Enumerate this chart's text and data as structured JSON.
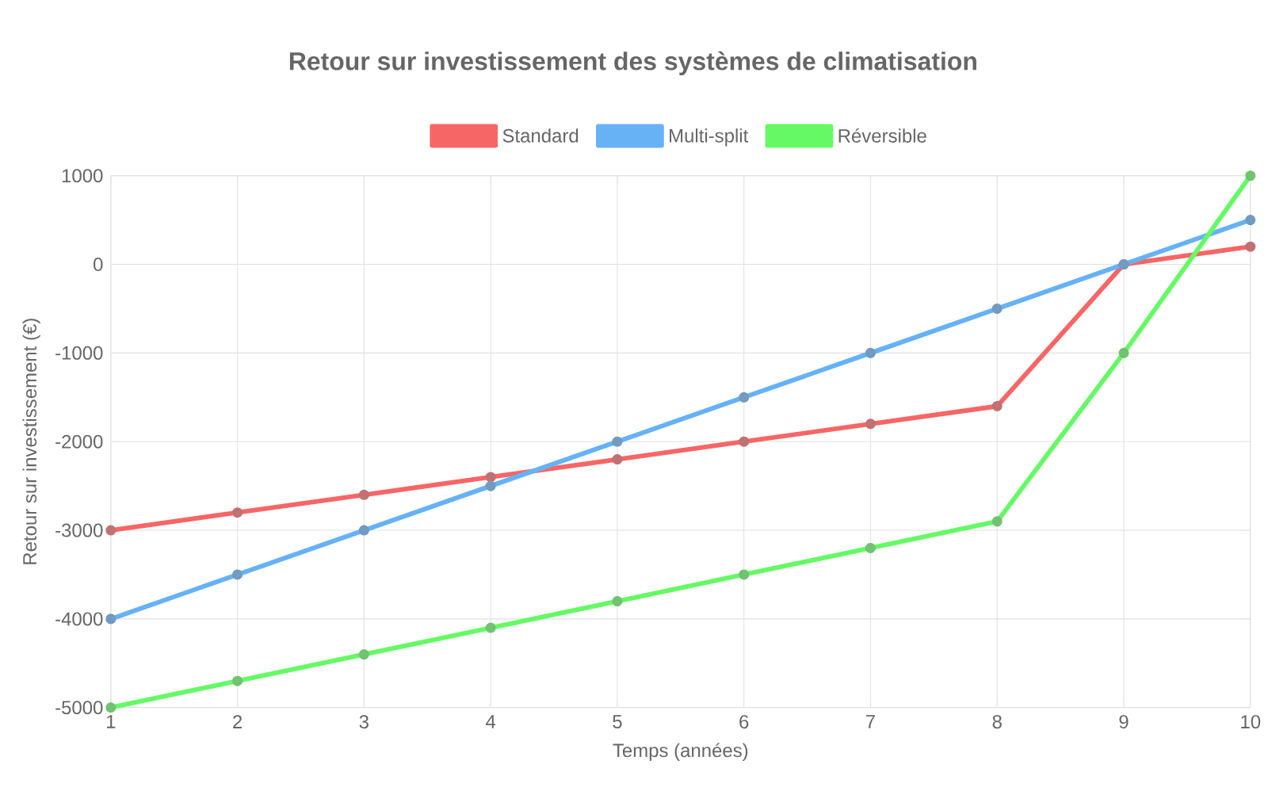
{
  "chart_data": {
    "type": "line",
    "title": "Retour sur investissement des systèmes de climatisation",
    "xlabel": "Temps (années)",
    "ylabel": "Retour sur investissement (€)",
    "categories": [
      "1",
      "2",
      "3",
      "4",
      "5",
      "6",
      "7",
      "8",
      "9",
      "10"
    ],
    "series": [
      {
        "name": "Standard",
        "color": "#f66666",
        "values": [
          -3000,
          -2800,
          -2600,
          -2400,
          -2200,
          -2000,
          -1800,
          -1600,
          0,
          200
        ]
      },
      {
        "name": "Multi-split",
        "color": "#66b2f5",
        "values": [
          -4000,
          -3500,
          -3000,
          -2500,
          -2000,
          -1500,
          -1000,
          -500,
          0,
          500
        ]
      },
      {
        "name": "Réversible",
        "color": "#66f966",
        "values": [
          -5000,
          -4700,
          -4400,
          -4100,
          -3800,
          -3500,
          -3200,
          -2900,
          -1000,
          1000
        ]
      }
    ],
    "ylim": [
      -5000,
      1000
    ],
    "yticks": [
      -5000,
      -4000,
      -3000,
      -2000,
      -1000,
      0,
      1000
    ],
    "grid": true,
    "legend": "top",
    "marker": "circle",
    "line_style": "solid"
  }
}
